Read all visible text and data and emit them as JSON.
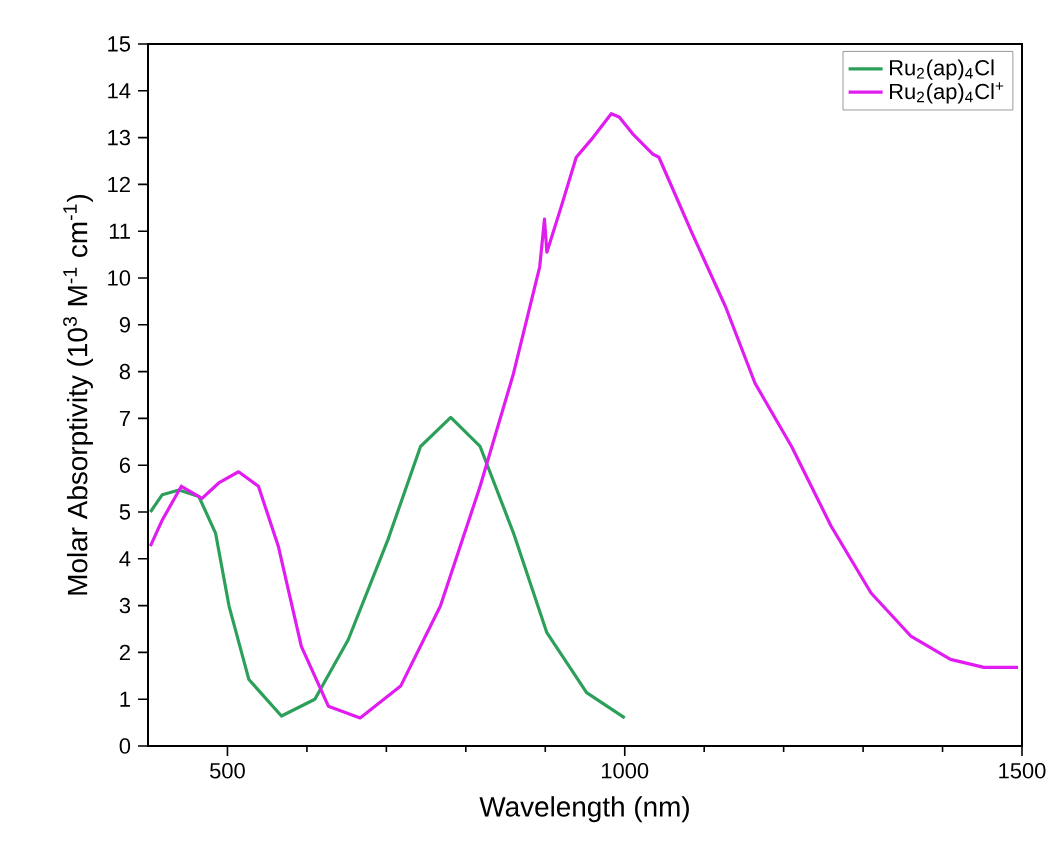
{
  "chart_data": {
    "type": "line",
    "xlabel": "Wavelength (nm)",
    "ylabel": "Molar Absorptivity (10$^{3}$ M$^{-1}$ cm$^{-1}$)",
    "xlim": [
      400,
      1500
    ],
    "ylim": [
      0,
      15
    ],
    "xticks": [
      500,
      1000,
      1500
    ],
    "yticks": [
      0,
      1,
      2,
      3,
      4,
      5,
      6,
      7,
      8,
      9,
      10,
      11,
      12,
      13,
      14,
      15
    ],
    "grid": false,
    "legend": "top right",
    "marker": "none",
    "line_style": "solid",
    "series": [
      {
        "name": "Ru$_{2}$(ap)$_{4}$Cl",
        "color": "#2ca05a",
        "x": [
          403,
          418,
          439,
          464,
          485,
          502,
          527,
          568,
          610,
          652,
          702,
          743,
          781,
          818,
          860,
          902,
          952,
          1000
        ],
        "values": [
          5.0,
          5.37,
          5.47,
          5.33,
          4.55,
          2.99,
          1.42,
          0.64,
          1.0,
          2.27,
          4.41,
          6.4,
          7.02,
          6.4,
          4.55,
          2.42,
          1.14,
          0.6
        ]
      },
      {
        "name": "Ru$_{2}$(ap)$_{4}$Cl$^{+}$",
        "color": "#e01cf0",
        "x": [
          403,
          418,
          442,
          468,
          489,
          514,
          539,
          564,
          593,
          627,
          667,
          718,
          768,
          818,
          860,
          893,
          899,
          902,
          920,
          939,
          960,
          983,
          993,
          1010,
          1035,
          1043,
          1085,
          1127,
          1164,
          1210,
          1260,
          1310,
          1360,
          1410,
          1452,
          1495
        ],
        "values": [
          4.27,
          4.83,
          5.55,
          5.29,
          5.62,
          5.86,
          5.55,
          4.27,
          2.13,
          0.85,
          0.6,
          1.28,
          2.99,
          5.55,
          7.96,
          10.24,
          11.26,
          10.55,
          11.52,
          12.58,
          13.0,
          13.51,
          13.44,
          13.08,
          12.65,
          12.58,
          10.95,
          9.38,
          7.75,
          6.4,
          4.69,
          3.27,
          2.35,
          1.85,
          1.68,
          1.68
        ]
      }
    ]
  }
}
